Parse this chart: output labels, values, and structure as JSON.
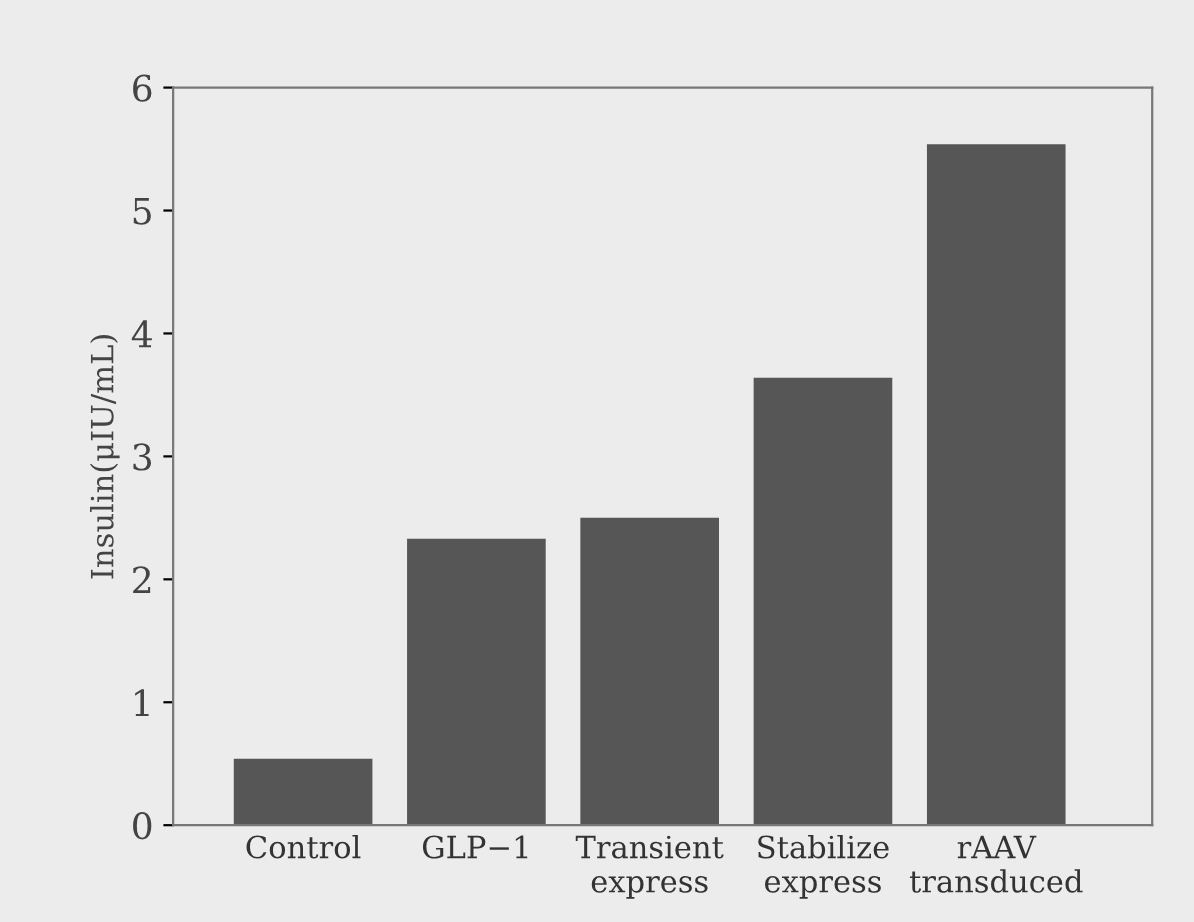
{
  "chart_data": {
    "type": "bar",
    "ylabel": "Insulin(μIU/mL)",
    "categories": [
      "Control",
      "GLP−1",
      "Transient\nexpress",
      "Stabilize\nexpress",
      "rAAV\ntransduced"
    ],
    "values": [
      0.54,
      2.33,
      2.5,
      3.64,
      5.54
    ],
    "color": "#565656",
    "ylim": [
      0,
      6
    ],
    "yticks": [
      0,
      1,
      2,
      3,
      4,
      5,
      6
    ],
    "grid": false
  }
}
